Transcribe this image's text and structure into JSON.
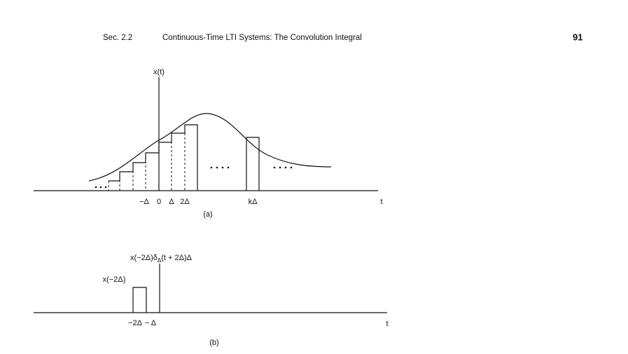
{
  "header": {
    "section": "Sec. 2.2",
    "title": "Continuous-Time LTI Systems: The Convolution Integral",
    "page": "91"
  },
  "figure_a": {
    "y_label": "x(t)",
    "ticks": [
      "−Δ",
      "0",
      "Δ",
      "2Δ",
      "kΔ"
    ],
    "x_label": "t",
    "caption": "(a)"
  },
  "figure_b": {
    "label": {
      "main": "x(−2Δ)δ",
      "subscript": "Δ",
      "rest": "(t + 2Δ)Δ"
    },
    "height_label": "x(−2Δ)",
    "ticks": [
      "−2Δ",
      "− Δ"
    ],
    "x_label": "t",
    "caption": "(b)"
  }
}
